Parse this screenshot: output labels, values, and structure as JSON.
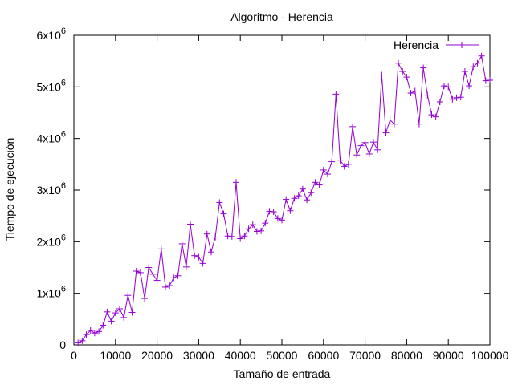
{
  "chart_data": {
    "type": "line",
    "title": "Algoritmo - Herencia",
    "xlabel": "Tamaño de entrada",
    "ylabel": "Tiempo de ejecución",
    "xlim": [
      0,
      100000
    ],
    "ylim": [
      0,
      6000000
    ],
    "x_ticks": [
      0,
      10000,
      20000,
      30000,
      40000,
      50000,
      60000,
      70000,
      80000,
      90000,
      100000
    ],
    "x_tick_labels": [
      "0",
      "10000",
      "20000",
      "30000",
      "40000",
      "50000",
      "60000",
      "70000",
      "80000",
      "90000",
      "100000"
    ],
    "y_ticks": [
      0,
      1000000,
      2000000,
      3000000,
      4000000,
      5000000,
      6000000
    ],
    "y_tick_labels": [
      {
        "base": "0",
        "exp": ""
      },
      {
        "base": "1x10",
        "exp": "6"
      },
      {
        "base": "2x10",
        "exp": "6"
      },
      {
        "base": "3x10",
        "exp": "6"
      },
      {
        "base": "4x10",
        "exp": "6"
      },
      {
        "base": "5x10",
        "exp": "6"
      },
      {
        "base": "6x10",
        "exp": "6"
      }
    ],
    "grid": false,
    "legend_position": "top-right",
    "marker": "plus",
    "series": [
      {
        "name": "Herencia",
        "color": "#9400d3",
        "x": [
          1000,
          2000,
          3000,
          4000,
          5000,
          6000,
          7000,
          8000,
          9000,
          10000,
          11000,
          12000,
          13000,
          14000,
          15000,
          16000,
          17000,
          18000,
          19000,
          20000,
          21000,
          22000,
          23000,
          24000,
          25000,
          26000,
          27000,
          28000,
          29000,
          30000,
          31000,
          32000,
          33000,
          34000,
          35000,
          36000,
          37000,
          38000,
          39000,
          40000,
          41000,
          42000,
          43000,
          44000,
          45000,
          46000,
          47000,
          48000,
          49000,
          50000,
          51000,
          52000,
          53000,
          54000,
          55000,
          56000,
          57000,
          58000,
          59000,
          60000,
          61000,
          62000,
          63000,
          64000,
          65000,
          66000,
          67000,
          68000,
          69000,
          70000,
          71000,
          72000,
          73000,
          74000,
          75000,
          76000,
          77000,
          78000,
          79000,
          80000,
          81000,
          82000,
          83000,
          84000,
          85000,
          86000,
          87000,
          88000,
          89000,
          90000,
          91000,
          92000,
          93000,
          94000,
          95000,
          96000,
          97000,
          98000,
          99000,
          100000
        ],
        "y": [
          40000,
          80000,
          200000,
          280000,
          230000,
          260000,
          380000,
          640000,
          460000,
          620000,
          700000,
          530000,
          960000,
          630000,
          1430000,
          1400000,
          900000,
          1500000,
          1370000,
          1250000,
          1860000,
          1120000,
          1150000,
          1300000,
          1340000,
          1960000,
          1510000,
          2340000,
          1730000,
          1700000,
          1580000,
          2150000,
          1800000,
          2090000,
          2760000,
          2540000,
          2110000,
          2100000,
          3150000,
          2060000,
          2110000,
          2250000,
          2330000,
          2200000,
          2210000,
          2360000,
          2590000,
          2580000,
          2450000,
          2420000,
          2820000,
          2600000,
          2840000,
          2890000,
          3020000,
          2810000,
          2950000,
          3150000,
          3100000,
          3390000,
          3310000,
          3550000,
          4860000,
          3580000,
          3460000,
          3500000,
          4230000,
          3680000,
          3860000,
          3920000,
          3700000,
          3930000,
          3780000,
          5230000,
          4110000,
          4360000,
          4280000,
          5460000,
          5300000,
          5190000,
          4880000,
          4920000,
          4280000,
          5370000,
          4840000,
          4460000,
          4420000,
          4710000,
          5020000,
          5000000,
          4760000,
          4790000,
          4800000,
          5300000,
          5020000,
          5390000,
          5460000,
          5600000,
          5120000,
          5130000
        ]
      }
    ]
  }
}
